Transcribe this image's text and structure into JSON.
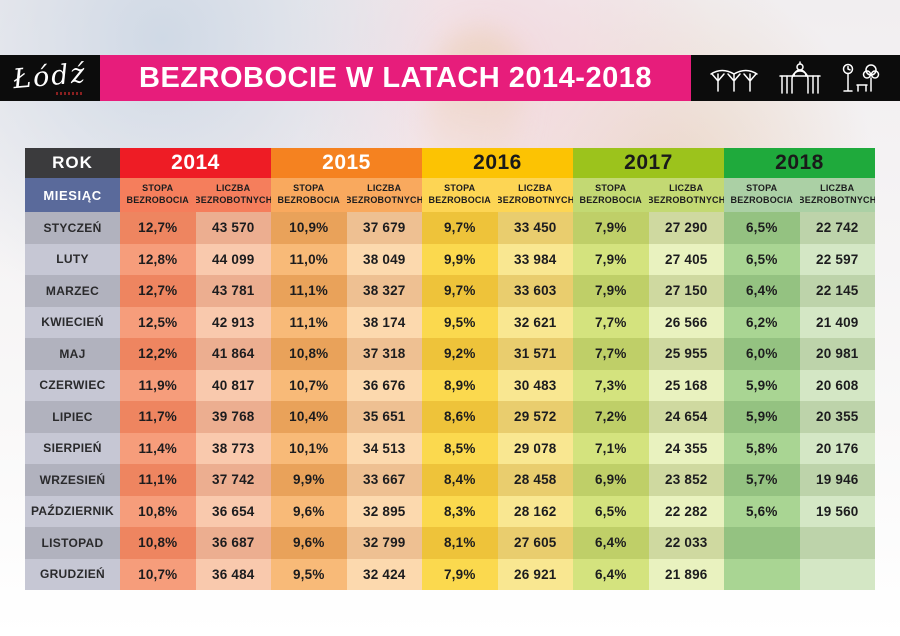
{
  "banner": {
    "title": "BEZROBOCIE W LATACH 2014-2018",
    "bg": "#e71d7b",
    "text_color": "#ffffff"
  },
  "logo": {
    "text": "Łódź"
  },
  "landmark_icons": [
    "station-roof-icon",
    "gate-icon",
    "park-icon"
  ],
  "table": {
    "corner_rok": "ROK",
    "corner_miesiac": "MIESIĄC",
    "corner": {
      "rok_bg": "#3b3b3d",
      "miesiac_bg": "#5a6a9b",
      "text": "#ffffff"
    },
    "subheader_rate": "STOPA BEZROBOCIA",
    "subheader_count": "LICZBA BEZROBOTNYCH",
    "months": [
      "STYCZEŃ",
      "LUTY",
      "MARZEC",
      "KWIECIEŃ",
      "MAJ",
      "CZERWIEC",
      "LIPIEC",
      "SIERPIEŃ",
      "WRZESIEŃ",
      "PAŹDZIERNIK",
      "LISTOPAD",
      "GRUDZIEŃ"
    ],
    "month_colors": [
      "#b1b2be",
      "#c6c7d4"
    ],
    "years": [
      {
        "label": "2014",
        "palette": {
          "header": "#ee1c25",
          "header_text": "#ffffff",
          "subheader": "#f57e5c",
          "stopa": [
            "#ee8560",
            "#f69d7b"
          ],
          "liczba": [
            "#ecae90",
            "#f9c9ad"
          ]
        }
      },
      {
        "label": "2015",
        "palette": {
          "header": "#f58220",
          "header_text": "#ffffff",
          "subheader": "#f9a95e",
          "stopa": [
            "#e9a25a",
            "#f8ba78"
          ],
          "liczba": [
            "#eec092",
            "#fcd9ae"
          ]
        }
      },
      {
        "label": "2016",
        "palette": {
          "header": "#fcc303",
          "header_text": "#1a1a1a",
          "subheader": "#fdd554",
          "stopa": [
            "#eec33a",
            "#fbd94e"
          ],
          "liczba": [
            "#e9cd6e",
            "#f9e791"
          ]
        }
      },
      {
        "label": "2017",
        "palette": {
          "header": "#9cc31c",
          "header_text": "#1a1a1a",
          "subheader": "#c3d973",
          "stopa": [
            "#bfcf68",
            "#d4e37e"
          ],
          "liczba": [
            "#cfd9a0",
            "#e9f2bf"
          ]
        }
      },
      {
        "label": "2018",
        "palette": {
          "header": "#1faa3c",
          "header_text": "#1a1a1a",
          "subheader": "#abd0a5",
          "stopa": [
            "#94c281",
            "#a9d593"
          ],
          "liczba": [
            "#bdd3aa",
            "#d4e7c5"
          ]
        }
      }
    ]
  },
  "chart_data": {
    "type": "table",
    "title": "BEZROBOCIE W LATACH 2014-2018",
    "categories": [
      "STYCZEŃ",
      "LUTY",
      "MARZEC",
      "KWIECIEŃ",
      "MAJ",
      "CZERWIEC",
      "LIPIEC",
      "SIERPIEŃ",
      "WRZESIEŃ",
      "PAŹDZIERNIK",
      "LISTOPAD",
      "GRUDZIEŃ"
    ],
    "series": [
      {
        "name": "2014",
        "stopa_bezrobocia_pct": [
          12.7,
          12.8,
          12.7,
          12.5,
          12.2,
          11.9,
          11.7,
          11.4,
          11.1,
          10.8,
          10.8,
          10.7
        ],
        "liczba_bezrobotnych": [
          43570,
          44099,
          43781,
          42913,
          41864,
          40817,
          39768,
          38773,
          37742,
          36654,
          36687,
          36484
        ]
      },
      {
        "name": "2015",
        "stopa_bezrobocia_pct": [
          10.9,
          11.0,
          11.1,
          11.1,
          10.8,
          10.7,
          10.4,
          10.1,
          9.9,
          9.6,
          9.6,
          9.5
        ],
        "liczba_bezrobotnych": [
          37679,
          38049,
          38327,
          38174,
          37318,
          36676,
          35651,
          34513,
          33667,
          32895,
          32799,
          32424
        ]
      },
      {
        "name": "2016",
        "stopa_bezrobocia_pct": [
          9.7,
          9.9,
          9.7,
          9.5,
          9.2,
          8.9,
          8.6,
          8.5,
          8.4,
          8.3,
          8.1,
          7.9
        ],
        "liczba_bezrobotnych": [
          33450,
          33984,
          33603,
          32621,
          31571,
          30483,
          29572,
          29078,
          28458,
          28162,
          27605,
          26921
        ]
      },
      {
        "name": "2017",
        "stopa_bezrobocia_pct": [
          7.9,
          7.9,
          7.9,
          7.7,
          7.7,
          7.3,
          7.2,
          7.1,
          6.9,
          6.5,
          6.4,
          6.4
        ],
        "liczba_bezrobotnych": [
          27290,
          27405,
          27150,
          26566,
          25955,
          25168,
          24654,
          24355,
          23852,
          22282,
          22033,
          21896
        ]
      },
      {
        "name": "2018",
        "stopa_bezrobocia_pct": [
          6.5,
          6.5,
          6.4,
          6.2,
          6.0,
          5.9,
          5.9,
          5.8,
          5.7,
          5.6,
          null,
          null
        ],
        "liczba_bezrobotnych": [
          22742,
          22597,
          22145,
          21409,
          20981,
          20608,
          20355,
          20176,
          19946,
          19560,
          null,
          null
        ]
      }
    ]
  }
}
